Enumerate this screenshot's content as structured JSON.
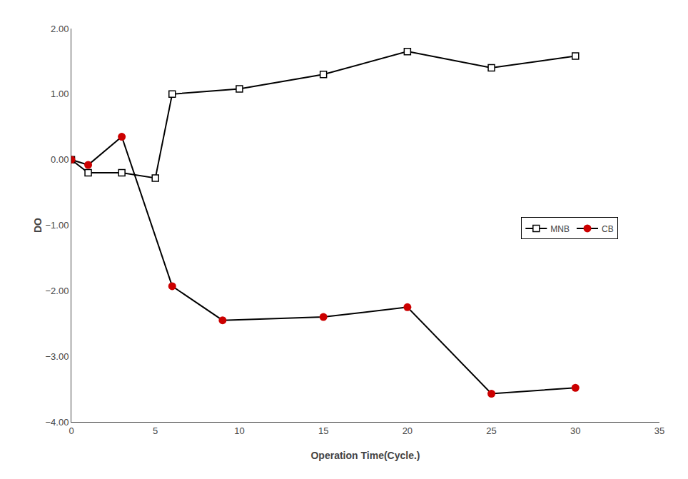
{
  "chart_data": {
    "type": "line",
    "xlabel": "Operation Time(Cycle.)",
    "ylabel": "DO",
    "color": "#000000",
    "series": [
      {
        "name": "MNB",
        "color": "#000000",
        "marker": "square-open",
        "x": [
          0,
          1,
          3,
          5,
          6,
          10,
          15,
          20,
          25,
          30
        ],
        "values": [
          0.0,
          -0.2,
          -0.2,
          -0.28,
          1.0,
          1.08,
          1.3,
          1.65,
          1.4,
          1.58
        ]
      },
      {
        "name": "CB",
        "color": "#cc0000",
        "marker": "circle",
        "x": [
          0,
          1,
          3,
          6,
          9,
          15,
          20,
          25,
          30
        ],
        "values": [
          0.0,
          -0.08,
          0.35,
          -1.93,
          -2.45,
          -2.4,
          -2.25,
          -3.57,
          -3.48
        ]
      }
    ],
    "xlim": [
      0,
      35
    ],
    "xticks": [
      0,
      5,
      10,
      15,
      20,
      25,
      30,
      35
    ],
    "ylim": [
      -4.0,
      2.0
    ],
    "yticks": [
      {
        "value": -4.0,
        "label": "−4.00"
      },
      {
        "value": -3.0,
        "label": "−3.00"
      },
      {
        "value": -2.0,
        "label": "−2.00"
      },
      {
        "value": -1.0,
        "label": "−1.00"
      },
      {
        "value": 0.0,
        "label": "0.00"
      },
      {
        "value": 1.0,
        "label": "1.00"
      },
      {
        "value": 2.0,
        "label": "2.00"
      }
    ],
    "grid": false,
    "legend": "right"
  }
}
